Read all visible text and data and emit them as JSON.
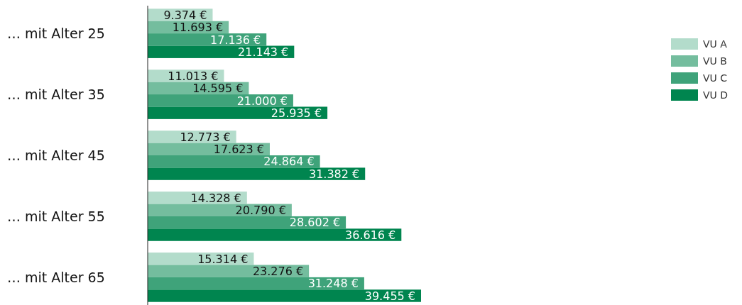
{
  "chart_data": {
    "type": "bar",
    "orientation": "horizontal",
    "categories": [
      "… mit Alter 25",
      "… mit Alter 35",
      "… mit Alter 45",
      "… mit Alter 55",
      "… mit Alter 65"
    ],
    "series": [
      {
        "name": "VU A",
        "color": "#b3dccb",
        "values": [
          9374,
          11013,
          12773,
          14328,
          15314
        ],
        "value_labels": [
          "9.374 €",
          "11.013 €",
          "12.773 €",
          "14.328 €",
          "15.314 €"
        ]
      },
      {
        "name": "VU B",
        "color": "#74bd9e",
        "values": [
          11693,
          14595,
          17623,
          20790,
          23276
        ],
        "value_labels": [
          "11.693 €",
          "14.595 €",
          "17.623 €",
          "20.790 €",
          "23.276 €"
        ]
      },
      {
        "name": "VU C",
        "color": "#3fa37a",
        "values": [
          17136,
          21000,
          24864,
          28602,
          31248
        ],
        "value_labels": [
          "17.136 €",
          "21.000 €",
          "24.864 €",
          "28.602 €",
          "31.248 €"
        ]
      },
      {
        "name": "VU D",
        "color": "#00854f",
        "values": [
          21143,
          25935,
          31382,
          36616,
          39455
        ],
        "value_labels": [
          "21.143 €",
          "25.935 €",
          "31.382 €",
          "36.616 €",
          "39.455 €"
        ]
      }
    ],
    "legend": "top right"
  }
}
